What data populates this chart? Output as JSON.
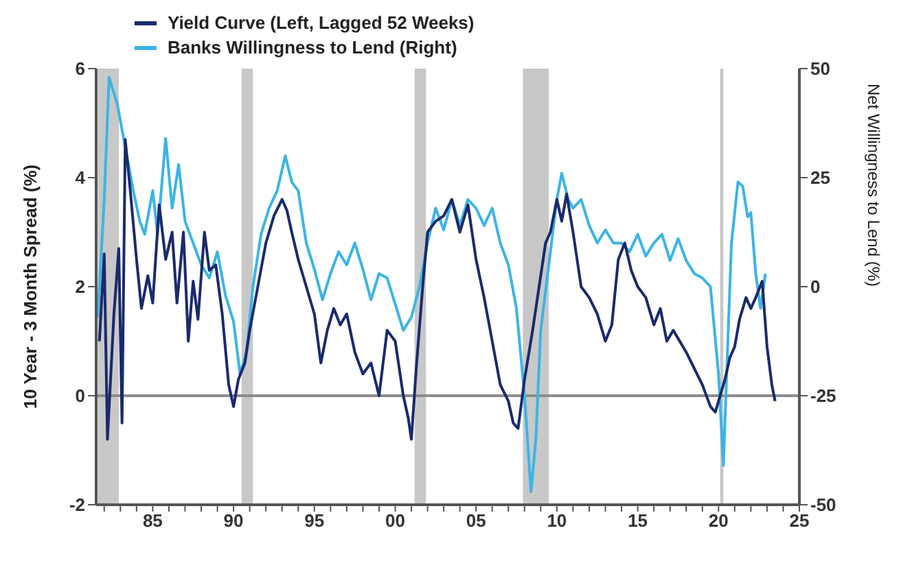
{
  "chart_data": {
    "type": "line",
    "ylabel": "10 Year - 3 Month Spread (%)",
    "y2label": "Net Willingness to Lend (%)",
    "xlim": [
      1981.5,
      2025
    ],
    "xticks": [
      {
        "value": 1982,
        "label": null
      },
      {
        "value": 1983,
        "label": null
      },
      {
        "value": 1984,
        "label": null
      },
      {
        "value": 1985,
        "label": "85"
      },
      {
        "value": 1986,
        "label": null
      },
      {
        "value": 1987,
        "label": null
      },
      {
        "value": 1988,
        "label": null
      },
      {
        "value": 1989,
        "label": null
      },
      {
        "value": 1990,
        "label": "90"
      },
      {
        "value": 1991,
        "label": null
      },
      {
        "value": 1992,
        "label": null
      },
      {
        "value": 1993,
        "label": null
      },
      {
        "value": 1994,
        "label": null
      },
      {
        "value": 1995,
        "label": "95"
      },
      {
        "value": 1996,
        "label": null
      },
      {
        "value": 1997,
        "label": null
      },
      {
        "value": 1998,
        "label": null
      },
      {
        "value": 1999,
        "label": null
      },
      {
        "value": 2000,
        "label": "00"
      },
      {
        "value": 2001,
        "label": null
      },
      {
        "value": 2002,
        "label": null
      },
      {
        "value": 2003,
        "label": null
      },
      {
        "value": 2004,
        "label": null
      },
      {
        "value": 2005,
        "label": "05"
      },
      {
        "value": 2006,
        "label": null
      },
      {
        "value": 2007,
        "label": null
      },
      {
        "value": 2008,
        "label": null
      },
      {
        "value": 2009,
        "label": null
      },
      {
        "value": 2010,
        "label": "10"
      },
      {
        "value": 2011,
        "label": null
      },
      {
        "value": 2012,
        "label": null
      },
      {
        "value": 2013,
        "label": null
      },
      {
        "value": 2014,
        "label": null
      },
      {
        "value": 2015,
        "label": "15"
      },
      {
        "value": 2016,
        "label": null
      },
      {
        "value": 2017,
        "label": null
      },
      {
        "value": 2018,
        "label": null
      },
      {
        "value": 2019,
        "label": null
      },
      {
        "value": 2020,
        "label": "20"
      },
      {
        "value": 2021,
        "label": null
      },
      {
        "value": 2022,
        "label": null
      },
      {
        "value": 2023,
        "label": null
      },
      {
        "value": 2024,
        "label": null
      },
      {
        "value": 2025,
        "label": "25"
      }
    ],
    "ylim": [
      -2,
      6
    ],
    "yticks": [
      -2,
      0,
      2,
      4,
      6
    ],
    "y2lim": [
      -50,
      50
    ],
    "y2ticks": [
      -50,
      -25,
      0,
      25,
      50
    ],
    "legend": "top left",
    "ref_lines": [
      {
        "axis": "y",
        "value": 0,
        "color": "#8c8c8c"
      }
    ],
    "bands": [
      {
        "axis": "x",
        "from": 1981.6,
        "to": 1982.9,
        "color": "#c8c8c8"
      },
      {
        "axis": "x",
        "from": 1990.5,
        "to": 1991.2,
        "color": "#c8c8c8"
      },
      {
        "axis": "x",
        "from": 2001.2,
        "to": 2001.9,
        "color": "#c8c8c8"
      },
      {
        "axis": "x",
        "from": 2007.9,
        "to": 2009.5,
        "color": "#c8c8c8"
      },
      {
        "axis": "x",
        "from": 2020.1,
        "to": 2020.3,
        "color": "#c8c8c8"
      }
    ],
    "series": [
      {
        "name": "Yield Curve (Left, Lagged 52 Weeks)",
        "color": "#1a2a6c",
        "x": [
          1981.7,
          1982.0,
          1982.2,
          1982.6,
          1982.9,
          1983.1,
          1983.3,
          1983.6,
          1984.0,
          1984.3,
          1984.7,
          1985.0,
          1985.4,
          1985.8,
          1986.2,
          1986.5,
          1986.9,
          1987.2,
          1987.5,
          1987.8,
          1988.2,
          1988.5,
          1988.9,
          1989.3,
          1989.7,
          1990.0,
          1990.3,
          1990.7,
          1991.0,
          1991.5,
          1992.0,
          1992.5,
          1993.0,
          1993.3,
          1993.6,
          1994.0,
          1994.5,
          1995.0,
          1995.4,
          1995.8,
          1996.2,
          1996.6,
          1997.0,
          1997.5,
          1998.0,
          1998.5,
          1999.0,
          1999.5,
          2000.0,
          2000.5,
          2000.8,
          2001.0,
          2001.3,
          2001.7,
          2002.0,
          2002.5,
          2003.0,
          2003.5,
          2004.0,
          2004.5,
          2005.0,
          2005.5,
          2006.0,
          2006.5,
          2007.0,
          2007.3,
          2007.6,
          2008.0,
          2008.5,
          2009.0,
          2009.3,
          2009.6,
          2010.0,
          2010.3,
          2010.6,
          2011.0,
          2011.5,
          2012.0,
          2012.5,
          2013.0,
          2013.4,
          2013.8,
          2014.2,
          2014.6,
          2015.0,
          2015.5,
          2016.0,
          2016.4,
          2016.8,
          2017.2,
          2017.6,
          2018.0,
          2018.5,
          2019.0,
          2019.5,
          2019.8,
          2020.1,
          2020.4,
          2020.7,
          2021.0,
          2021.3,
          2021.7,
          2022.0,
          2022.3,
          2022.7,
          2023.0,
          2023.3,
          2023.5
        ],
        "values": [
          1.0,
          2.6,
          -0.8,
          1.5,
          2.7,
          -0.5,
          4.7,
          3.8,
          2.5,
          1.6,
          2.2,
          1.7,
          3.5,
          2.5,
          3.0,
          1.7,
          3.0,
          1.0,
          2.1,
          1.4,
          3.0,
          2.3,
          2.4,
          1.5,
          0.2,
          -0.2,
          0.3,
          0.6,
          1.2,
          2.0,
          2.8,
          3.3,
          3.6,
          3.4,
          3.0,
          2.5,
          2.0,
          1.5,
          0.6,
          1.2,
          1.6,
          1.3,
          1.5,
          0.8,
          0.4,
          0.6,
          0.0,
          1.2,
          1.0,
          0.0,
          -0.4,
          -0.8,
          0.5,
          2.0,
          3.0,
          3.2,
          3.3,
          3.6,
          3.0,
          3.5,
          2.5,
          1.8,
          1.0,
          0.2,
          -0.1,
          -0.5,
          -0.6,
          0.3,
          1.2,
          2.2,
          2.8,
          3.0,
          3.6,
          3.2,
          3.7,
          3.0,
          2.0,
          1.8,
          1.5,
          1.0,
          1.3,
          2.5,
          2.8,
          2.3,
          2.0,
          1.8,
          1.3,
          1.6,
          1.0,
          1.2,
          1.0,
          0.8,
          0.5,
          0.2,
          -0.2,
          -0.3,
          0.0,
          0.3,
          0.7,
          0.9,
          1.4,
          1.8,
          1.6,
          1.8,
          2.1,
          0.9,
          0.2,
          -0.1
        ]
      },
      {
        "name": "Banks Willingness to Lend (Right)",
        "color": "#3cb4e5",
        "axis": "y2",
        "x": [
          1981.6,
          1982.0,
          1982.3,
          1982.8,
          1983.3,
          1983.8,
          1984.2,
          1984.5,
          1985.0,
          1985.3,
          1985.8,
          1986.2,
          1986.6,
          1987.0,
          1987.5,
          1988.0,
          1988.5,
          1989.0,
          1989.5,
          1990.0,
          1990.4,
          1990.8,
          1991.2,
          1991.7,
          1992.2,
          1992.7,
          1993.2,
          1993.6,
          1994.0,
          1994.5,
          1995.0,
          1995.5,
          1996.0,
          1996.5,
          1997.0,
          1997.5,
          1998.0,
          1998.5,
          1999.0,
          1999.5,
          2000.0,
          2000.5,
          2001.0,
          2001.5,
          2002.0,
          2002.5,
          2003.0,
          2003.5,
          2004.0,
          2004.5,
          2005.0,
          2005.5,
          2006.0,
          2006.5,
          2007.0,
          2007.5,
          2008.0,
          2008.4,
          2008.7,
          2009.0,
          2009.5,
          2010.0,
          2010.3,
          2010.7,
          2011.0,
          2011.5,
          2012.0,
          2012.5,
          2013.0,
          2013.5,
          2014.0,
          2014.5,
          2015.0,
          2015.5,
          2016.0,
          2016.5,
          2017.0,
          2017.5,
          2018.0,
          2018.5,
          2019.0,
          2019.5,
          2020.0,
          2020.3,
          2020.6,
          2020.8,
          2021.2,
          2021.5,
          2021.8,
          2022.0,
          2022.3,
          2022.6,
          2022.9
        ],
        "values": [
          -7,
          20,
          48,
          42,
          32,
          22,
          15,
          12,
          22,
          12,
          34,
          18,
          28,
          15,
          10,
          5,
          2,
          8,
          -2,
          -8,
          -20,
          -15,
          0,
          12,
          18,
          22,
          30,
          24,
          22,
          10,
          4,
          -3,
          3,
          8,
          5,
          10,
          4,
          -3,
          3,
          2,
          -4,
          -10,
          -7,
          0,
          10,
          18,
          13,
          20,
          14,
          20,
          18,
          14,
          18,
          10,
          5,
          -5,
          -25,
          -47,
          -35,
          -10,
          5,
          20,
          26,
          20,
          18,
          20,
          14,
          10,
          13,
          10,
          10,
          8,
          12,
          7,
          10,
          12,
          6,
          11,
          6,
          3,
          2,
          0,
          -20,
          -41,
          -10,
          10,
          24,
          23,
          16,
          17,
          3,
          -5,
          3
        ]
      }
    ]
  }
}
